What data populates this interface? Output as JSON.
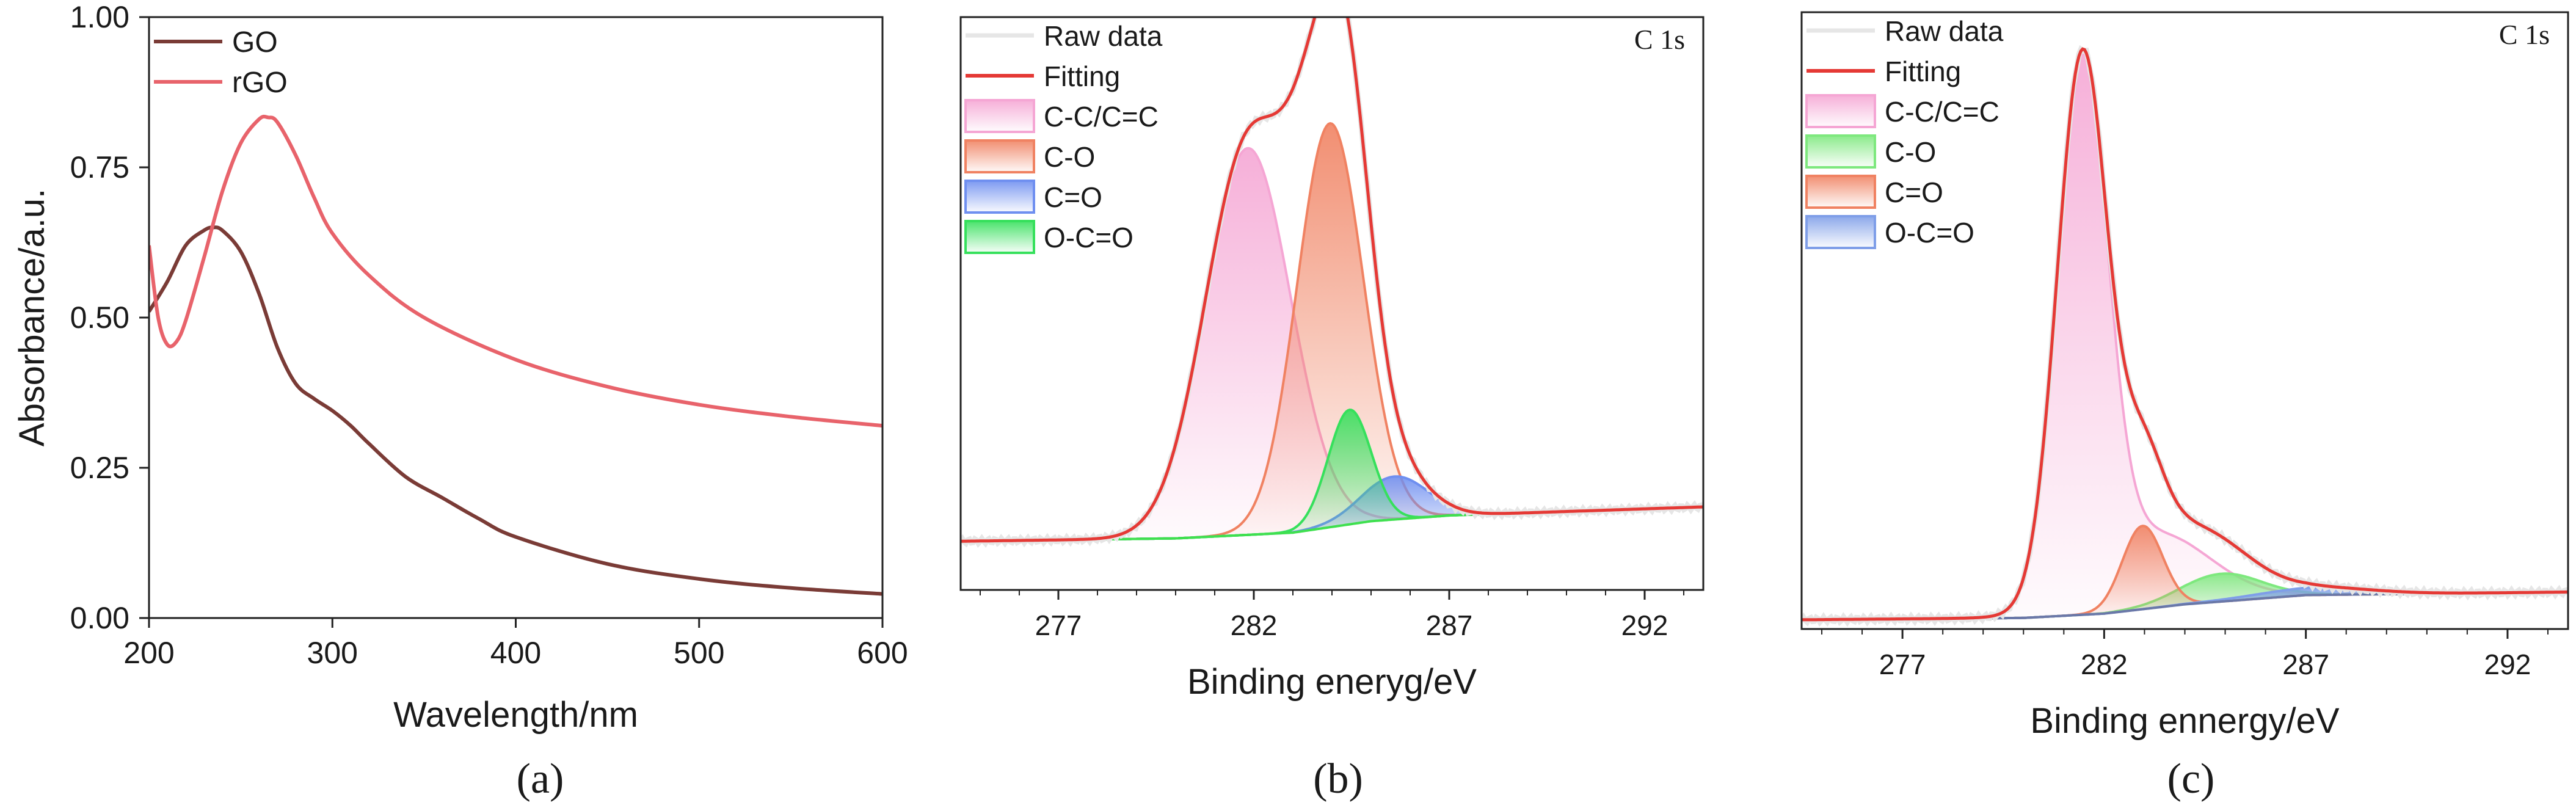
{
  "figure": {
    "panel_labels": [
      "(a)",
      "(b)",
      "(c)"
    ]
  },
  "chart_data": [
    {
      "panel": "(a)",
      "type": "line",
      "title": "",
      "xlabel": "Wavelength/nm",
      "ylabel": "Absorbance/a.u.",
      "xlim": [
        200,
        600
      ],
      "ylim": [
        0,
        1.0
      ],
      "xticks": [
        "200",
        "300",
        "400",
        "500",
        "600"
      ],
      "yticks": [
        "0.00",
        "0.25",
        "0.50",
        "0.75",
        "1.00"
      ],
      "legend": "top-left",
      "series": [
        {
          "name": "GO",
          "color": "#7a3b36",
          "x": [
            200,
            210,
            220,
            230,
            235,
            240,
            250,
            260,
            270,
            280,
            290,
            300,
            310,
            320,
            340,
            360,
            380,
            400,
            450,
            500,
            550,
            600
          ],
          "y": [
            0.51,
            0.56,
            0.62,
            0.645,
            0.65,
            0.645,
            0.61,
            0.54,
            0.45,
            0.39,
            0.365,
            0.345,
            0.32,
            0.29,
            0.235,
            0.2,
            0.165,
            0.135,
            0.09,
            0.065,
            0.05,
            0.04
          ]
        },
        {
          "name": "rGO",
          "color": "#e8636b",
          "x": [
            200,
            205,
            210,
            215,
            220,
            230,
            240,
            250,
            260,
            265,
            270,
            280,
            290,
            300,
            320,
            350,
            400,
            450,
            500,
            550,
            600
          ],
          "y": [
            0.62,
            0.5,
            0.455,
            0.46,
            0.495,
            0.6,
            0.71,
            0.79,
            0.83,
            0.833,
            0.825,
            0.77,
            0.7,
            0.64,
            0.57,
            0.5,
            0.43,
            0.385,
            0.355,
            0.335,
            0.32
          ]
        }
      ]
    },
    {
      "panel": "(b)",
      "type": "area",
      "title": "C 1s",
      "xlabel": "Binding eneryg/eV",
      "ylabel": "",
      "xlim": [
        274.5,
        293.5
      ],
      "ylim": [
        0,
        1
      ],
      "xticks": [
        "277",
        "282",
        "287",
        "292"
      ],
      "legend": "top-left",
      "background": {
        "x": [
          274.5,
          280,
          283,
          285,
          287,
          293.5
        ],
        "y": [
          0.085,
          0.09,
          0.1,
          0.12,
          0.13,
          0.145
        ]
      },
      "components": [
        {
          "name": "C-C/C=C",
          "center": 281.85,
          "height": 0.675,
          "width": 1.1,
          "color": "#f5a6d4"
        },
        {
          "name": "C-O",
          "center": 283.95,
          "height": 0.705,
          "width": 0.85,
          "color": "#f08262"
        },
        {
          "name": "C=O",
          "center": 285.6,
          "height": 0.075,
          "width": 0.85,
          "color": "#6f8ff0"
        },
        {
          "name": "O-C=O",
          "center": 284.45,
          "height": 0.2,
          "width": 0.55,
          "color": "#36e05c"
        }
      ],
      "series": [
        {
          "name": "Raw data",
          "color": "#e6e6e6"
        },
        {
          "name": "Fitting",
          "color": "#e53935"
        }
      ]
    },
    {
      "panel": "(c)",
      "type": "area",
      "title": "C 1s",
      "xlabel": "Binding ennergy/eV",
      "ylabel": "",
      "xlim": [
        274.5,
        293.5
      ],
      "ylim": [
        0,
        1
      ],
      "xticks": [
        "277",
        "282",
        "287",
        "292"
      ],
      "legend": "top-left",
      "background": {
        "x": [
          274.5,
          280,
          282,
          284,
          287,
          293.5
        ],
        "y": [
          0.015,
          0.018,
          0.025,
          0.04,
          0.055,
          0.06
        ]
      },
      "components": [
        {
          "name": "C-C/C=C",
          "center": 281.45,
          "height": 0.86,
          "width": 0.62,
          "color": "#f5a6d4",
          "tail": {
            "center": 283.2,
            "height": 0.12,
            "width": 1.4
          }
        },
        {
          "name": "C-O",
          "center": 284.9,
          "height": 0.045,
          "width": 1.0,
          "color": "#7ee87e"
        },
        {
          "name": "C=O",
          "center": 282.95,
          "height": 0.135,
          "width": 0.5,
          "color": "#f08262"
        },
        {
          "name": "O-C=O",
          "center": 287.2,
          "height": 0.012,
          "width": 1.4,
          "color": "#7f9ee8"
        }
      ],
      "series": [
        {
          "name": "Raw data",
          "color": "#e6e6e6"
        },
        {
          "name": "Fitting",
          "color": "#e53935"
        }
      ]
    }
  ]
}
